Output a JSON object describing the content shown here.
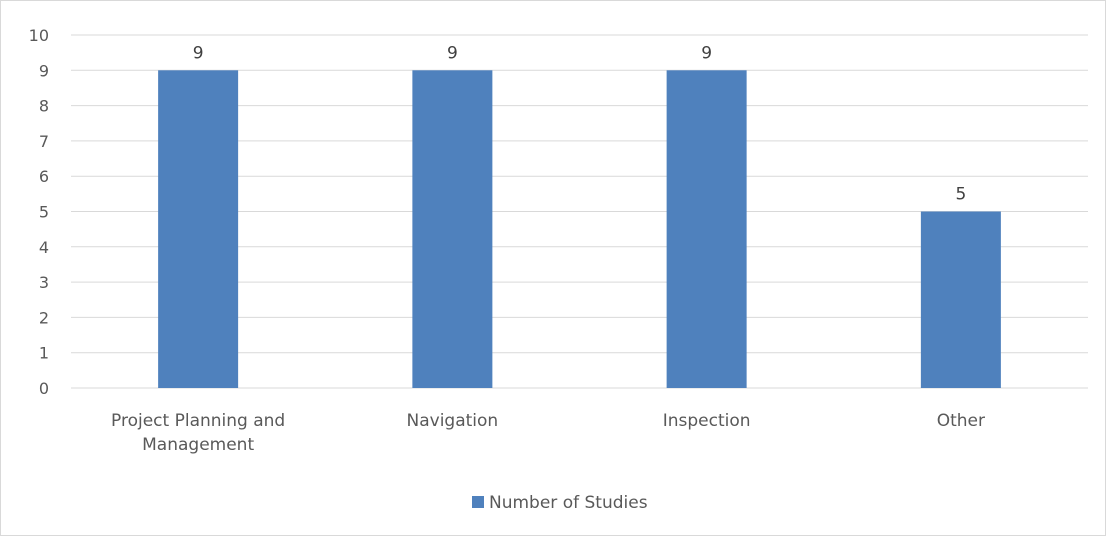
{
  "chart_data": {
    "type": "bar",
    "title": "",
    "xlabel": "",
    "ylabel": "",
    "categories": [
      "Project Planning and Management",
      "Navigation",
      "Inspection",
      "Other"
    ],
    "category_lines": [
      [
        "Project Planning and",
        "Management"
      ],
      [
        "Navigation"
      ],
      [
        "Inspection"
      ],
      [
        "Other"
      ]
    ],
    "series": [
      {
        "name": "Number of Studies",
        "values": [
          9,
          9,
          9,
          5
        ],
        "color": "#4f81bd"
      }
    ],
    "ylim": [
      0,
      10
    ],
    "yticks": [
      0,
      1,
      2,
      3,
      4,
      5,
      6,
      7,
      8,
      9,
      10
    ],
    "grid": true,
    "data_labels": true,
    "legend_position": "bottom",
    "colors": {
      "bar": "#4f81bd",
      "grid": "#d9d9d9",
      "text": "#595959"
    }
  }
}
